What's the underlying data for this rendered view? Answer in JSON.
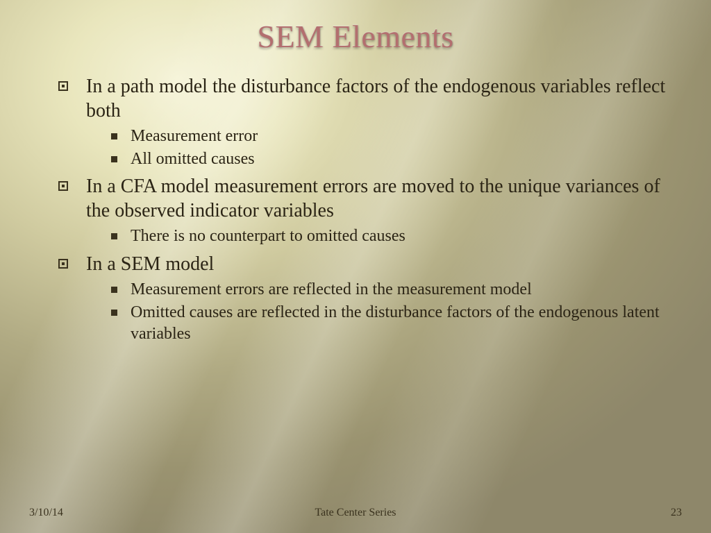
{
  "colors": {
    "title_color": "#b36f6f",
    "body_text_color": "#2b2415",
    "bullet_color": "#3a321e",
    "bg_inner": "#f5f3d8",
    "bg_outer": "#8e876a"
  },
  "typography": {
    "title_fontsize_pt": 34,
    "body_fontsize_pt": 21,
    "sub_fontsize_pt": 18,
    "footer_fontsize_pt": 12,
    "font_family": "Palatino / Book Antiqua (serif)"
  },
  "title": "SEM Elements",
  "bullets": [
    {
      "text": "In a path model the disturbance factors of the endogenous variables reflect both",
      "sub": [
        "Measurement error",
        "All omitted causes"
      ]
    },
    {
      "text": "In a CFA model measurement errors are moved to the unique variances of the observed indicator variables",
      "sub": [
        "There is no counterpart to omitted causes"
      ]
    },
    {
      "text": "In a SEM model",
      "sub": [
        "Measurement errors are reflected in the measurement model",
        "Omitted causes are reflected in the disturbance factors of the endogenous  latent variables"
      ]
    }
  ],
  "footer": {
    "date": "3/10/14",
    "series": "Tate Center Series",
    "page": "23"
  }
}
